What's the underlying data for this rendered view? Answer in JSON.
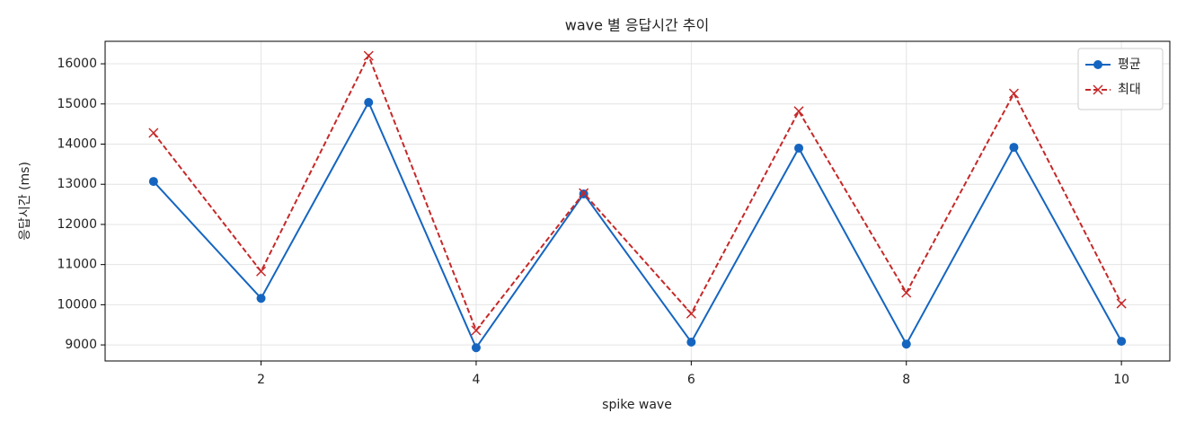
{
  "chart_data": {
    "type": "line",
    "title": "wave 별 응답시간 추이",
    "xlabel": "spike wave",
    "ylabel": "응답시간 (ms)",
    "x": [
      1,
      2,
      3,
      4,
      5,
      6,
      7,
      8,
      9,
      10
    ],
    "series": [
      {
        "name": "평균",
        "color": "#1565c0",
        "marker": "o",
        "linestyle": "solid",
        "values": [
          13070,
          10160,
          15040,
          8930,
          12760,
          9070,
          13900,
          9020,
          13920,
          9090
        ]
      },
      {
        "name": "최대",
        "color": "#c62828",
        "marker": "x",
        "linestyle": "dashed",
        "values": [
          14280,
          10830,
          16200,
          9360,
          12780,
          9780,
          14820,
          10300,
          15260,
          10030
        ]
      }
    ],
    "xlim": [
      0.55,
      10.45
    ],
    "xticks": [
      2,
      4,
      6,
      8,
      10
    ],
    "ylim": [
      8600,
      16560
    ],
    "yticks": [
      9000,
      10000,
      11000,
      12000,
      13000,
      14000,
      15000,
      16000
    ],
    "grid": true,
    "legend": "upper right"
  }
}
